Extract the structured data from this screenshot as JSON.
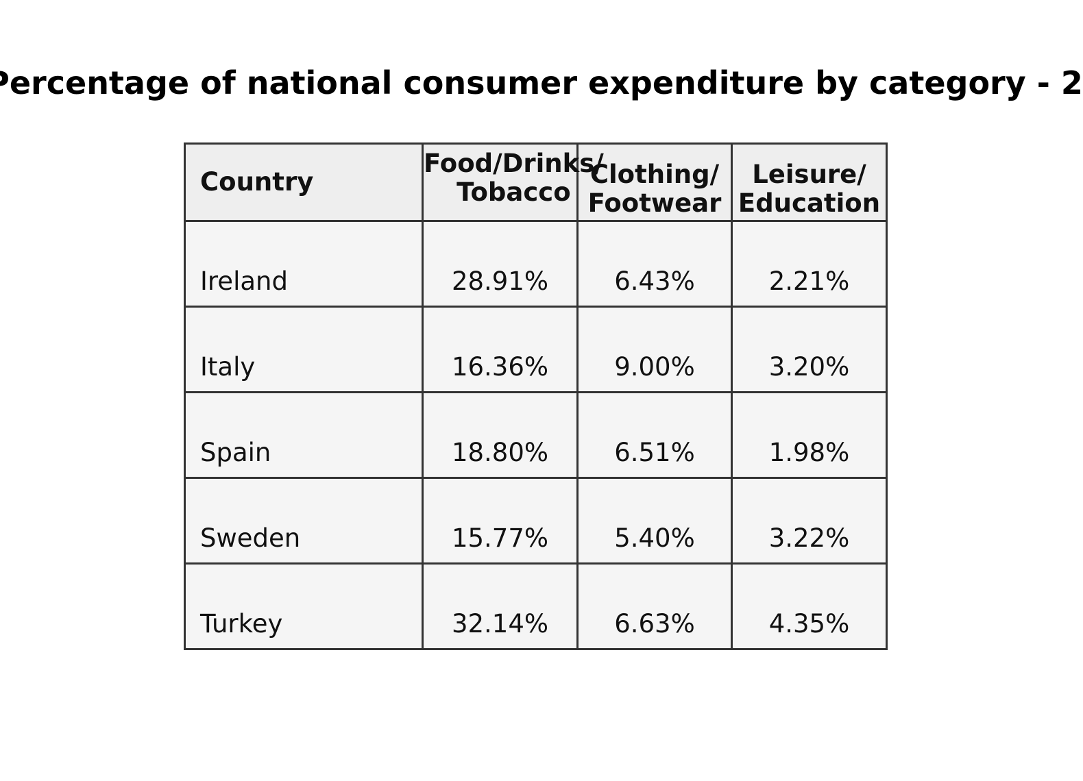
{
  "chart_data": {
    "type": "table",
    "title": "Percentage of national consumer expenditure by category - 2",
    "columns": [
      "Country",
      "Food/Drinks/\nTobacco",
      "Clothing/\nFootwear",
      "Leisure/\nEducation"
    ],
    "rows": [
      [
        "Ireland",
        "28.91%",
        "6.43%",
        "2.21%"
      ],
      [
        "Italy",
        "16.36%",
        "9.00%",
        "3.20%"
      ],
      [
        "Spain",
        "18.80%",
        "6.51%",
        "1.98%"
      ],
      [
        "Sweden",
        "15.77%",
        "5.40%",
        "3.22%"
      ],
      [
        "Turkey",
        "32.14%",
        "6.63%",
        "4.35%"
      ]
    ],
    "header_background": "#eeeeee",
    "cell_background": "#f5f5f5",
    "border_color": "#333333"
  }
}
